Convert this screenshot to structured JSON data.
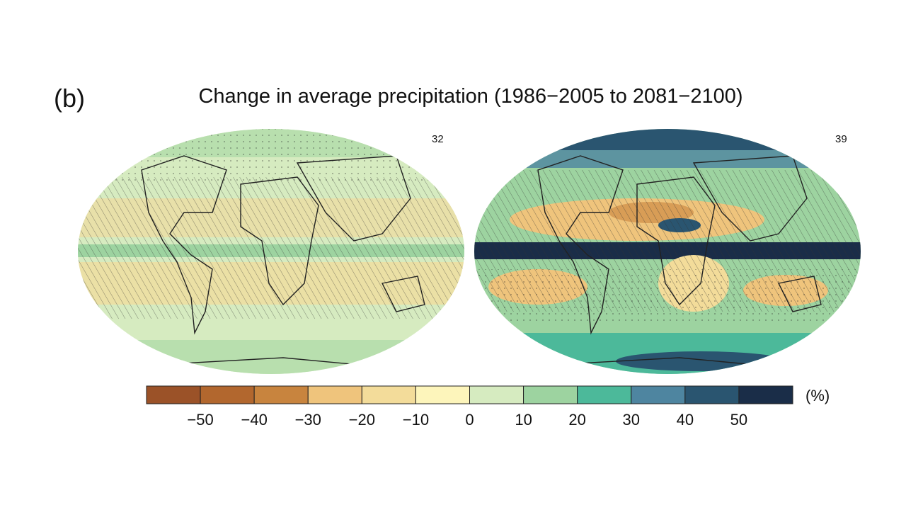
{
  "panel_label": "(b)",
  "title": "Change in average precipitation (1986−2005 to 2081−2100)",
  "maps": [
    {
      "model_count": "32",
      "dominant_colors": [
        "#d6ebc0",
        "#f3dc9a",
        "#9dd3a0"
      ]
    },
    {
      "model_count": "39",
      "dominant_colors": [
        "#9dd3a0",
        "#efc47c",
        "#2a5570",
        "#1a2d48"
      ]
    }
  ],
  "colorbar": {
    "unit": "(%)",
    "colors": [
      "#9b5228",
      "#b2672e",
      "#c8843e",
      "#efc47c",
      "#f3dc9a",
      "#fdf5bb",
      "#d6ebc0",
      "#9dd3a0",
      "#4cb99a",
      "#4e85a0",
      "#2a5570",
      "#1a2d48"
    ],
    "ticks": [
      "−50",
      "−40",
      "−30",
      "−20",
      "−10",
      "0",
      "10",
      "20",
      "30",
      "40",
      "50"
    ]
  }
}
